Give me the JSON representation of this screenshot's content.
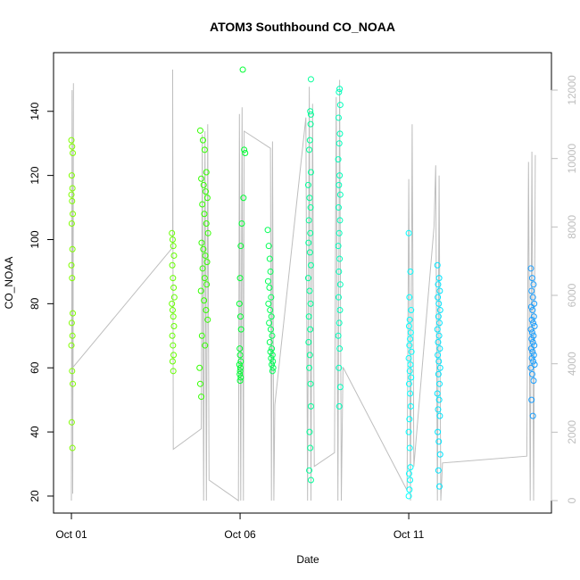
{
  "chart_data": {
    "type": "scatter",
    "title": "ATOM3 Southbound CO_NOAA",
    "x_label": "Date",
    "y_label": "CO_NOAA",
    "xlim": [
      -0.53,
      14.23
    ],
    "xticks": [
      {
        "value": 0,
        "label": "Oct 01"
      },
      {
        "value": 5,
        "label": "Oct 06"
      },
      {
        "value": 10,
        "label": "Oct 11"
      }
    ],
    "ylim": [
      14.7,
      158.3
    ],
    "yticks": [
      20,
      40,
      60,
      80,
      100,
      120,
      140
    ],
    "y2lim": [
      -365,
      13096
    ],
    "y2ticks": [
      0,
      2000,
      4000,
      6000,
      8000,
      10000,
      12000
    ],
    "y2_color": "#bebebe",
    "flights": [
      {
        "color": "#80ff00",
        "x": [
          0.0,
          0.02,
          0.04,
          0.01,
          0.03,
          0.0,
          0.02,
          0.04,
          0.01,
          0.03,
          0.0,
          0.02,
          0.04,
          0.01,
          0.03,
          0.0,
          0.02,
          0.04,
          0.01,
          0.03
        ],
        "values": [
          131,
          129,
          127,
          120,
          116,
          114,
          112,
          108,
          105,
          97,
          92,
          88,
          77,
          74,
          70,
          67,
          59,
          55,
          43,
          35
        ]
      },
      {
        "color": "#66ff00",
        "x": [
          2.98,
          3.0,
          3.02,
          3.04,
          2.99,
          3.01,
          3.03,
          3.05,
          2.98,
          3.0,
          3.02,
          3.04,
          2.99,
          3.01,
          3.03,
          3.0,
          3.02
        ],
        "values": [
          102,
          100,
          98,
          95,
          92,
          88,
          85,
          82,
          80,
          78,
          76,
          73,
          70,
          67,
          64,
          62,
          59
        ]
      },
      {
        "color": "#33ff00",
        "x": [
          3.82,
          3.9,
          3.95,
          4.0,
          3.85,
          3.92,
          3.98,
          4.03,
          3.88,
          3.94,
          4.0,
          4.05,
          3.86,
          3.91,
          3.97,
          4.02,
          3.89,
          3.95,
          4.01,
          3.84,
          3.93,
          3.99,
          4.04,
          3.87,
          3.96,
          3.8,
          3.82,
          3.85
        ],
        "values": [
          134,
          131,
          128,
          121,
          119,
          117,
          115,
          113,
          111,
          108,
          105,
          102,
          99,
          97,
          95,
          93,
          91,
          88,
          86,
          84,
          81,
          78,
          75,
          70,
          67,
          60,
          55,
          51
        ]
      },
      {
        "color": "#00ff33",
        "x": [
          5.08,
          5.12,
          5.15,
          5.1,
          5.05,
          5.02,
          5.0,
          4.98,
          5.01,
          5.03,
          4.99,
          5.0,
          5.02,
          4.98,
          5.01,
          5.0,
          4.99,
          5.02,
          5.0
        ],
        "values": [
          153,
          128,
          127,
          113,
          105,
          98,
          88,
          80,
          76,
          72,
          66,
          64,
          62,
          61,
          60,
          59,
          58,
          57,
          56
        ]
      },
      {
        "color": "#00ff55",
        "x": [
          5.82,
          5.85,
          5.88,
          5.9,
          5.83,
          5.87,
          5.92,
          5.84,
          5.89,
          5.93,
          5.86,
          5.91,
          5.95,
          5.88,
          5.94,
          5.9,
          5.96,
          5.92,
          5.97,
          5.94,
          5.98,
          5.96
        ],
        "values": [
          103,
          98,
          94,
          90,
          87,
          85,
          82,
          80,
          78,
          76,
          74,
          72,
          70,
          68,
          66,
          65,
          64,
          63,
          62,
          61,
          60,
          59
        ]
      },
      {
        "color": "#00ff99",
        "x": [
          7.1,
          7.08,
          7.1,
          7.09,
          7.07,
          7.05,
          7.1,
          7.02,
          7.06,
          7.09,
          7.04,
          7.08,
          7.03,
          7.07,
          7.1,
          7.02,
          7.06,
          7.09,
          7.04,
          7.08,
          7.03,
          7.07,
          7.05,
          7.09,
          7.1,
          7.06,
          7.08,
          7.05,
          7.1
        ],
        "values": [
          150,
          140,
          139,
          136,
          131,
          128,
          121,
          117,
          113,
          110,
          106,
          102,
          99,
          96,
          92,
          88,
          84,
          80,
          76,
          72,
          68,
          64,
          60,
          55,
          48,
          40,
          35,
          28,
          25
        ]
      },
      {
        "color": "#00ffbb",
        "x": [
          7.95,
          7.93,
          7.97,
          7.92,
          7.96,
          7.94,
          7.91,
          7.95,
          7.93,
          7.97,
          7.92,
          7.96,
          7.94,
          7.91,
          7.95,
          7.93,
          7.97,
          7.92,
          7.96,
          7.94,
          7.91,
          7.95,
          7.93,
          7.97,
          7.94
        ],
        "values": [
          147,
          146,
          142,
          138,
          133,
          130,
          125,
          120,
          117,
          114,
          110,
          106,
          102,
          98,
          94,
          90,
          86,
          82,
          78,
          74,
          70,
          66,
          60,
          54,
          48
        ]
      },
      {
        "color": "#00ffff",
        "x": [
          10.0,
          10.05,
          10.02,
          10.07,
          10.03,
          10.01,
          10.06,
          10.04,
          10.02,
          10.08,
          10.0,
          10.05,
          10.03,
          10.07,
          10.01,
          10.04,
          10.06,
          10.02,
          10.0,
          10.03,
          10.05,
          10.01,
          10.04,
          10.02,
          10.0
        ],
        "values": [
          102,
          90,
          82,
          78,
          75,
          73,
          71,
          69,
          67,
          65,
          63,
          61,
          59,
          57,
          55,
          52,
          48,
          44,
          40,
          35,
          29,
          27,
          25,
          22,
          20
        ]
      },
      {
        "color": "#00e5ff",
        "x": [
          10.85,
          10.9,
          10.87,
          10.92,
          10.86,
          10.89,
          10.93,
          10.88,
          10.91,
          10.85,
          10.9,
          10.87,
          10.92,
          10.86,
          10.89,
          10.93,
          10.88,
          10.91,
          10.85,
          10.9,
          10.87,
          10.92,
          10.86,
          10.89,
          10.93,
          10.88,
          10.91
        ],
        "values": [
          92,
          88,
          86,
          84,
          82,
          80,
          78,
          76,
          74,
          72,
          70,
          68,
          66,
          64,
          62,
          60,
          58,
          55,
          52,
          50,
          47,
          45,
          40,
          37,
          33,
          28,
          23
        ]
      },
      {
        "color": "#1a9fff",
        "x": [
          13.62,
          13.66,
          13.7,
          13.64,
          13.68,
          13.72,
          13.63,
          13.67,
          13.71,
          13.65,
          13.69,
          13.73,
          13.62,
          13.66,
          13.7,
          13.64,
          13.68,
          13.72,
          13.63,
          13.67,
          13.71,
          13.65,
          13.69,
          13.73,
          13.62,
          13.66,
          13.7,
          13.64,
          13.68
        ],
        "values": [
          91,
          88,
          86,
          84,
          82,
          80,
          79,
          78,
          76,
          75,
          74,
          73,
          72,
          71,
          70,
          69,
          68,
          67,
          66,
          65,
          64,
          63,
          62,
          61,
          60,
          58,
          56,
          50,
          45
        ]
      }
    ],
    "altitude": {
      "axis": "y2",
      "color": "#bebebe",
      "x": [
        0,
        0.02,
        0.04,
        0.06,
        0.05,
        3.0,
        3.0,
        3.02,
        3.85,
        3.88,
        3.92,
        3.96,
        4.0,
        4.04,
        4.08,
        4.95,
        4.98,
        5.02,
        5.06,
        5.1,
        5.12,
        5.9,
        5.93,
        5.96,
        6.0,
        6.03,
        6.95,
        7.0,
        7.05,
        7.1,
        7.15,
        7.2,
        7.8,
        7.85,
        7.9,
        7.95,
        8.0,
        8.05,
        9.95,
        10.0,
        10.05,
        10.1,
        10.15,
        10.75,
        10.8,
        10.85,
        10.9,
        10.95,
        11.0,
        13.5,
        13.55,
        13.6,
        13.65,
        13.7,
        13.75
      ],
      "values": [
        0,
        12000,
        200,
        12200,
        3900,
        7400,
        12600,
        1500,
        2100,
        10700,
        0,
        10800,
        0,
        11000,
        600,
        0,
        11300,
        0,
        11500,
        0,
        10800,
        10300,
        0,
        10500,
        0,
        2800,
        11200,
        0,
        12100,
        0,
        11600,
        1000,
        1400,
        11800,
        0,
        12300,
        0,
        3900,
        300,
        9400,
        0,
        11000,
        1000,
        8000,
        9800,
        0,
        9500,
        0,
        1100,
        1300,
        9900,
        0,
        10200,
        0,
        10100
      ]
    }
  }
}
